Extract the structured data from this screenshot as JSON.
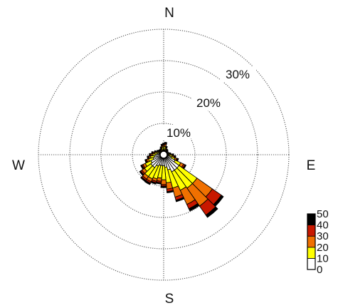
{
  "chart_data": {
    "type": "windrose",
    "directions": {
      "north": "N",
      "east": "E",
      "south": "S",
      "west": "W"
    },
    "ring_labels": [
      "10%",
      "20%",
      "30%"
    ],
    "ring_values": [
      10,
      20,
      30
    ],
    "r_max_percent": 40,
    "grid": "dotted",
    "legend": {
      "position": "bottom-right",
      "ticks": [
        "0",
        "10",
        "20",
        "30",
        "40",
        "50"
      ],
      "bins": [
        {
          "range": [
            0,
            10
          ],
          "color": "#ffffff"
        },
        {
          "range": [
            10,
            20
          ],
          "color": "#ffff00"
        },
        {
          "range": [
            20,
            30
          ],
          "color": "#f07000"
        },
        {
          "range": [
            30,
            40
          ],
          "color": "#c81800"
        },
        {
          "range": [
            40,
            50
          ],
          "color": "#000000"
        }
      ]
    },
    "sectors": [
      {
        "direction_deg": 0,
        "stack": [
          1.5,
          1.0,
          0.5,
          0.3,
          0.4
        ]
      },
      {
        "direction_deg": 10,
        "stack": [
          1.5,
          1.2,
          0.6,
          0.3,
          0.4
        ]
      },
      {
        "direction_deg": 20,
        "stack": [
          1.0,
          0.8,
          0.5,
          0.2,
          0.3
        ]
      },
      {
        "direction_deg": 30,
        "stack": [
          0.8,
          0.6,
          0.3,
          0.2,
          0.2
        ]
      },
      {
        "direction_deg": 40,
        "stack": [
          0.8,
          0.5,
          0.3,
          0.2,
          0.2
        ]
      },
      {
        "direction_deg": 50,
        "stack": [
          0.5,
          0.5,
          0.3,
          0.2,
          0.2
        ]
      },
      {
        "direction_deg": 60,
        "stack": [
          0.5,
          0.3,
          0.2,
          0.1,
          0.2
        ]
      },
      {
        "direction_deg": 70,
        "stack": [
          0.7,
          0.4,
          0.3,
          0.2,
          0.2
        ]
      },
      {
        "direction_deg": 80,
        "stack": [
          1.0,
          0.6,
          0.3,
          0.2,
          0.2
        ]
      },
      {
        "direction_deg": 90,
        "stack": [
          1.5,
          0.8,
          0.4,
          0.2,
          0.3
        ]
      },
      {
        "direction_deg": 100,
        "stack": [
          1.8,
          1.0,
          0.5,
          0.3,
          0.3
        ]
      },
      {
        "direction_deg": 110,
        "stack": [
          2.5,
          1.2,
          0.6,
          0.3,
          0.3
        ]
      },
      {
        "direction_deg": 120,
        "stack": [
          4.0,
          2.0,
          1.0,
          0.5,
          0.4
        ]
      },
      {
        "direction_deg": 130,
        "stack": [
          6.0,
          7.0,
          6.0,
          3.5,
          0.8
        ]
      },
      {
        "direction_deg": 140,
        "stack": [
          6.0,
          7.0,
          7.0,
          3.5,
          0.9
        ]
      },
      {
        "direction_deg": 150,
        "stack": [
          6.0,
          6.5,
          5.0,
          1.5,
          0.8
        ]
      },
      {
        "direction_deg": 160,
        "stack": [
          5.0,
          6.0,
          3.0,
          1.0,
          0.5
        ]
      },
      {
        "direction_deg": 170,
        "stack": [
          4.0,
          5.0,
          2.0,
          0.8,
          0.4
        ]
      },
      {
        "direction_deg": 180,
        "stack": [
          3.5,
          4.5,
          1.5,
          0.5,
          0.5
        ]
      },
      {
        "direction_deg": 190,
        "stack": [
          3.5,
          4.0,
          1.0,
          0.5,
          0.4
        ]
      },
      {
        "direction_deg": 200,
        "stack": [
          3.5,
          4.5,
          0.8,
          0.5,
          0.4
        ]
      },
      {
        "direction_deg": 210,
        "stack": [
          4.0,
          4.5,
          1.0,
          0.5,
          0.5
        ]
      },
      {
        "direction_deg": 220,
        "stack": [
          5.0,
          3.5,
          1.0,
          0.5,
          0.4
        ]
      },
      {
        "direction_deg": 230,
        "stack": [
          5.0,
          2.5,
          1.0,
          0.5,
          0.4
        ]
      },
      {
        "direction_deg": 240,
        "stack": [
          4.5,
          2.0,
          0.8,
          0.4,
          0.4
        ]
      },
      {
        "direction_deg": 250,
        "stack": [
          3.5,
          1.5,
          0.6,
          0.3,
          0.3
        ]
      },
      {
        "direction_deg": 260,
        "stack": [
          3.0,
          1.2,
          0.5,
          0.3,
          0.3
        ]
      },
      {
        "direction_deg": 270,
        "stack": [
          2.5,
          1.0,
          0.5,
          0.3,
          0.3
        ]
      },
      {
        "direction_deg": 280,
        "stack": [
          2.0,
          0.9,
          0.4,
          0.3,
          0.3
        ]
      },
      {
        "direction_deg": 290,
        "stack": [
          1.5,
          0.8,
          0.4,
          0.2,
          0.2
        ]
      },
      {
        "direction_deg": 300,
        "stack": [
          1.2,
          0.6,
          0.3,
          0.2,
          0.2
        ]
      },
      {
        "direction_deg": 310,
        "stack": [
          1.0,
          0.5,
          0.3,
          0.2,
          0.2
        ]
      },
      {
        "direction_deg": 320,
        "stack": [
          0.8,
          0.5,
          0.3,
          0.2,
          0.2
        ]
      },
      {
        "direction_deg": 330,
        "stack": [
          1.0,
          0.5,
          0.3,
          0.2,
          0.2
        ]
      },
      {
        "direction_deg": 340,
        "stack": [
          1.2,
          0.7,
          0.3,
          0.2,
          0.3
        ]
      },
      {
        "direction_deg": 350,
        "stack": [
          1.5,
          0.9,
          0.4,
          0.3,
          0.3
        ]
      }
    ]
  }
}
